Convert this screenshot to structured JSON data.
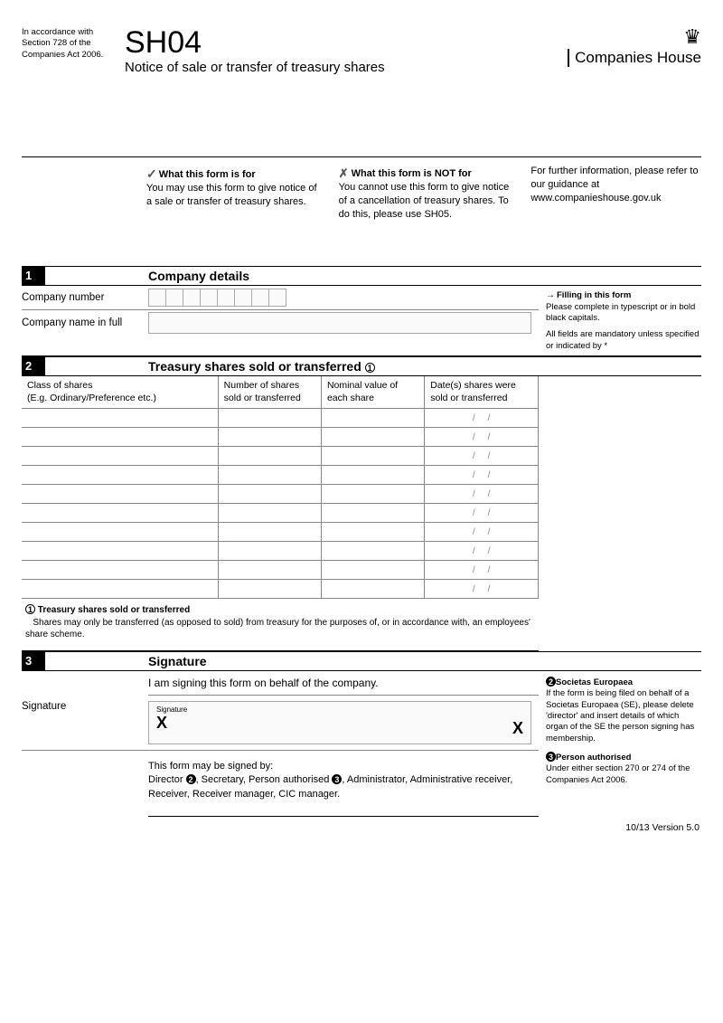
{
  "header": {
    "act_note": "In accordance with Section 728 of the Companies Act 2006.",
    "form_code": "SH04",
    "form_title": "Notice of sale or transfer of treasury shares",
    "logo_text": "Companies House",
    "crest_glyph": "♛"
  },
  "info": {
    "for_heading": "What this form is for",
    "for_text": "You may use this form to give notice of a sale or transfer of treasury shares.",
    "not_heading": "What this form is NOT for",
    "not_text": "You cannot use this form to give notice of a cancellation of treasury shares. To do this, please use SH05.",
    "further_text": "For further information, please refer to our guidance at www.companieshouse.gov.uk"
  },
  "section1": {
    "num": "1",
    "title": "Company details",
    "company_number_label": "Company number",
    "company_name_label": "Company name  in full",
    "char_box_count": 8,
    "side": {
      "arrow": "→",
      "heading": "Filling in this form",
      "p1": "Please complete in typescript or in bold black capitals.",
      "p2": "All fields are mandatory unless specified or indicated by *"
    }
  },
  "section2": {
    "num": "2",
    "title": "Treasury shares sold or transferred",
    "title_marker": "1",
    "columns": {
      "class": "Class of shares",
      "class_sub": "(E.g. Ordinary/Preference etc.)",
      "number": "Number of shares sold or transferred",
      "nominal": "Nominal value of each share",
      "date": "Date(s) shares were sold or transferred"
    },
    "row_count": 10,
    "date_placeholder": "//",
    "note": {
      "marker": "1",
      "heading": "Treasury shares sold or transferred",
      "text": "Shares may only be transferred (as opposed to sold) from treasury for the purposes of, or in accordance with, an employees' share scheme."
    }
  },
  "section3": {
    "num": "3",
    "title": "Signature",
    "intro": "I am signing this form on behalf of the company.",
    "signature_label": "Signature",
    "sig_small": "Signature",
    "x": "X",
    "may_heading": "This form may be signed by:",
    "may_text_1": "Director ",
    "may_text_2": ", Secretary, Person authorised ",
    "may_text_3": ", Administrator, Administrative receiver, Receiver, Receiver manager, CIC manager.",
    "side": {
      "n2_marker": "2",
      "n2_heading": "Societas Europaea",
      "n2_text": "If the form is being filed on behalf of a Societas Europaea (SE), please delete 'director' and insert details of which organ of the SE the person signing has membership.",
      "n3_marker": "3",
      "n3_heading": "Person authorised",
      "n3_text": "Under either section 270 or 274 of the Companies Act 2006."
    }
  },
  "footer": "10/13 Version 5.0",
  "colors": {
    "text": "#000000",
    "border": "#888888",
    "bg": "#ffffff",
    "input_bg": "#fafafa"
  }
}
